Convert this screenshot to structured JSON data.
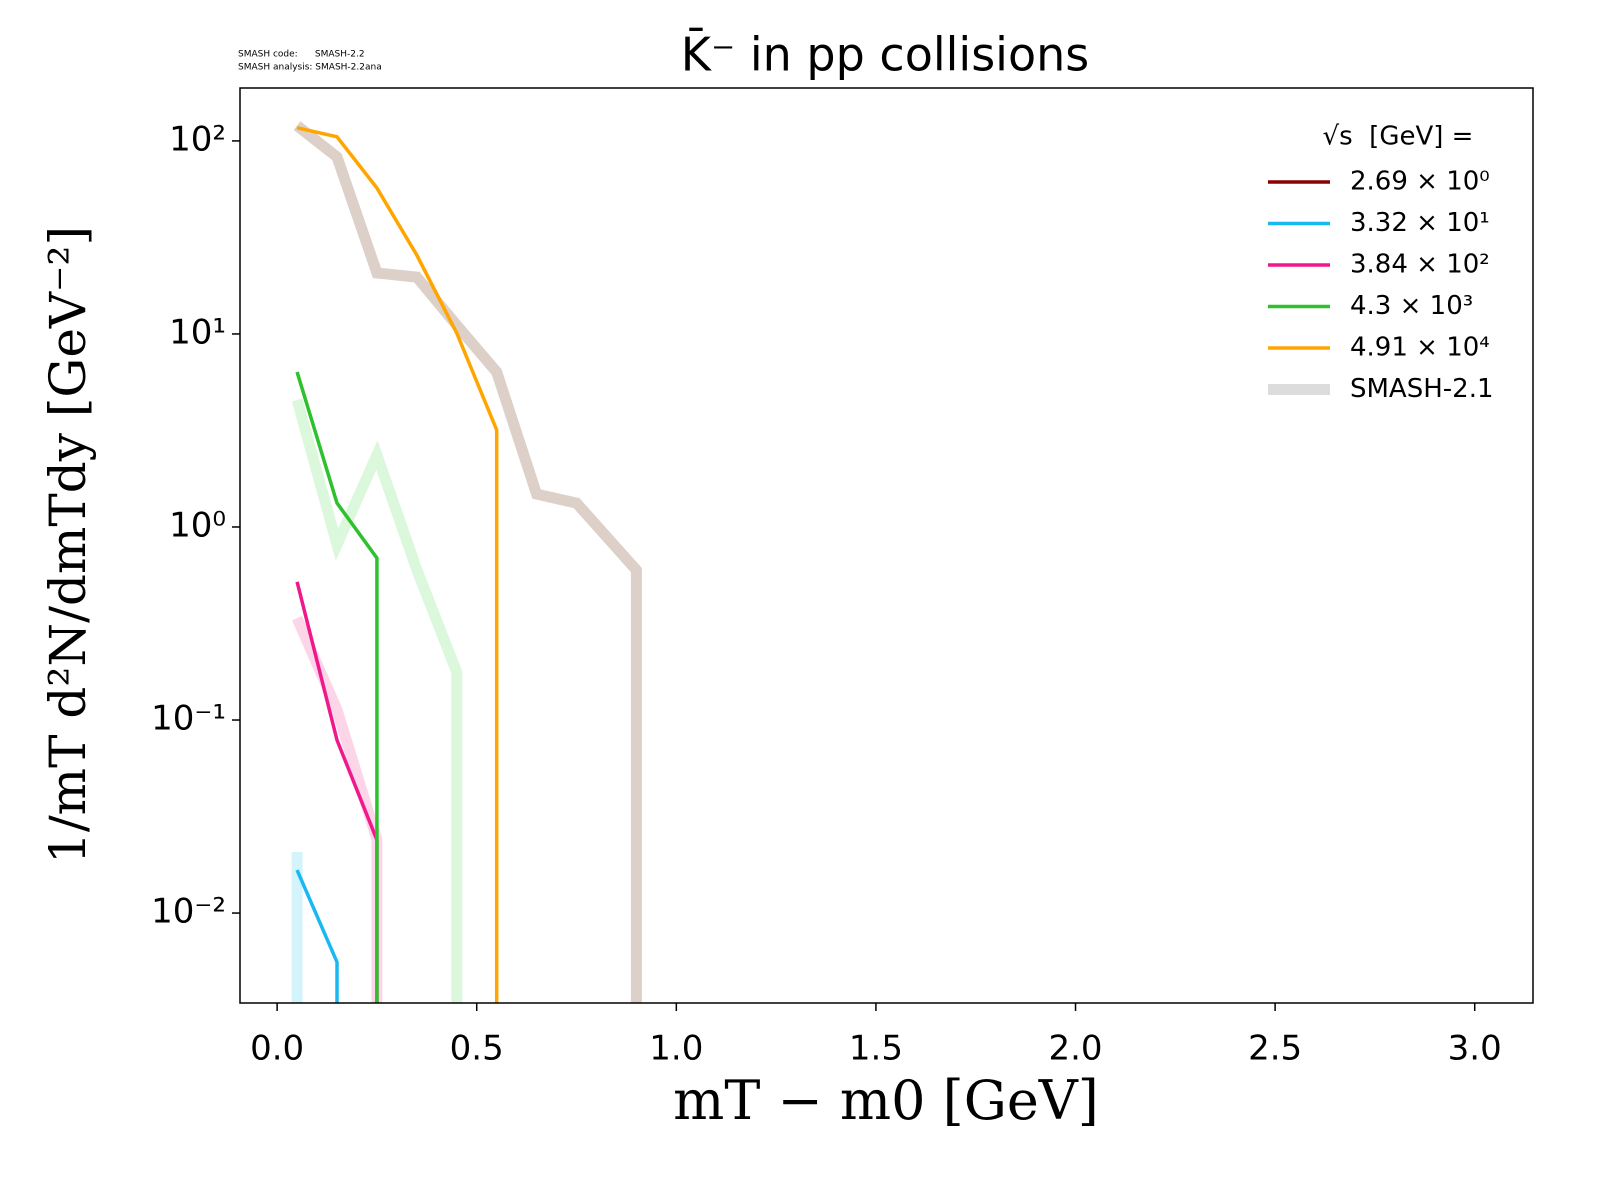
{
  "chart_data": {
    "type": "line",
    "title": "K̄⁻ in pp collisions",
    "watermark": [
      "SMASH code:      SMASH-2.2",
      "SMASH analysis: SMASH-2.2ana"
    ],
    "xlabel": "mT − m0 [GeV]",
    "ylabel": "1/mT d²N/dmTdy [GeV⁻²]",
    "xlim": [
      -0.093,
      3.146
    ],
    "xticks": [
      {
        "value": 0,
        "label": "0.0"
      },
      0.5,
      {
        "value": 1,
        "label": "1.0"
      },
      1.5,
      {
        "value": 2,
        "label": "2.0"
      },
      2.5,
      {
        "value": 3,
        "label": "3.0"
      }
    ],
    "ylim": [
      0.00342,
      188
    ],
    "yscale": "log",
    "yticks": [
      {
        "value": 0.01,
        "label": "10⁻²"
      },
      {
        "value": 0.1,
        "label": "10⁻¹"
      },
      {
        "value": 1,
        "label": "10⁰"
      },
      {
        "value": 10,
        "label": "10¹"
      },
      {
        "value": 100,
        "label": "10²"
      }
    ],
    "legend_title": "√s  [GeV] =",
    "legend": "upper right",
    "series": [
      {
        "name": "2.69 × 10⁰",
        "color": "#8b0000",
        "x": [],
        "values": []
      },
      {
        "name": "3.32 × 10¹",
        "color": "#1ab8f0",
        "x": [
          0.05,
          0.15,
          0.25
        ],
        "values": [
          0.0167,
          0.00557,
          0
        ]
      },
      {
        "name": "3.84 × 10²",
        "color": "#f0198c",
        "x": [
          0.05,
          0.15,
          0.25,
          0.35
        ],
        "values": [
          0.52,
          0.0787,
          0.0239,
          0
        ]
      },
      {
        "name": "4.3 × 10³",
        "color": "#2dc12d",
        "x": [
          0.05,
          0.15,
          0.25,
          0.35
        ],
        "values": [
          6.35,
          1.33,
          0.69,
          0
        ]
      },
      {
        "name": "4.91 × 10⁴",
        "color": "#ffa500",
        "x": [
          0.05,
          0.15,
          0.25,
          0.35,
          0.45,
          0.55,
          0.65
        ],
        "values": [
          117,
          105,
          57,
          25.6,
          10.1,
          3.18,
          0
        ]
      }
    ],
    "reference": {
      "name": "SMASH-2.1",
      "color": "#dcdcdc",
      "curves": [
        {
          "color": "#d4f4fc",
          "x": [
            0.05,
            0.15
          ],
          "values": [
            0.0207,
            0
          ]
        },
        {
          "color": "#fcd6e8",
          "x": [
            0.05,
            0.15,
            0.25,
            0.35
          ],
          "values": [
            0.337,
            0.113,
            0.024,
            0
          ]
        },
        {
          "color": "#dcf8dc",
          "x": [
            0.05,
            0.15,
            0.25,
            0.35,
            0.45,
            0.55
          ],
          "values": [
            4.55,
            0.81,
            2.36,
            0.6,
            0.177,
            0
          ]
        },
        {
          "color": "#ddd0c8",
          "x": [
            0.05,
            0.15,
            0.25,
            0.35,
            0.45,
            0.55,
            0.65,
            0.75,
            0.9,
            1.0
          ],
          "values": [
            120,
            82.6,
            20.7,
            19.7,
            11.1,
            6.35,
            1.48,
            1.33,
            0.598,
            0
          ]
        }
      ]
    }
  }
}
